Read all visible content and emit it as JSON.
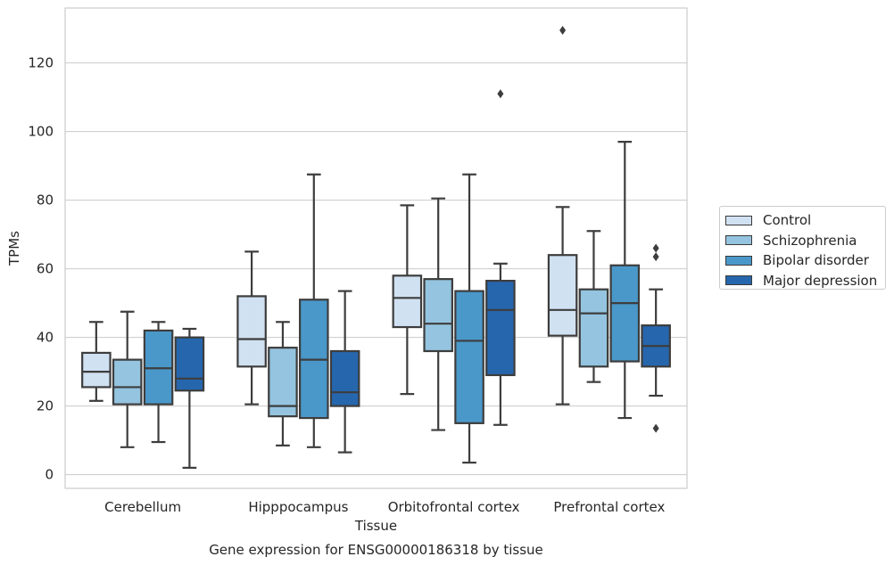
{
  "chart_data": {
    "type": "box",
    "title": "Gene expression for ENSG00000186318 by tissue",
    "xlabel": "Tissue",
    "ylabel": "TPMs",
    "ylim": [
      -4,
      136
    ],
    "yticks": [
      0,
      20,
      40,
      60,
      80,
      100,
      120
    ],
    "grid": "horizontal",
    "legend_position": "right",
    "categories": [
      "Cerebellum",
      "Hipppocampus",
      "Orbitofrontal cortex",
      "Prefrontal cortex"
    ],
    "series": [
      {
        "name": "Control",
        "color": "#d0e1f2",
        "boxes": [
          {
            "whisker_low": 21.5,
            "q1": 25.5,
            "median": 30,
            "q3": 35.5,
            "whisker_high": 44.5,
            "outliers": []
          },
          {
            "whisker_low": 20.5,
            "q1": 31.5,
            "median": 39.5,
            "q3": 52,
            "whisker_high": 65,
            "outliers": []
          },
          {
            "whisker_low": 23.5,
            "q1": 43,
            "median": 51.5,
            "q3": 58,
            "whisker_high": 78.5,
            "outliers": []
          },
          {
            "whisker_low": 20.5,
            "q1": 40.5,
            "median": 48,
            "q3": 64,
            "whisker_high": 78,
            "outliers": [
              129.5
            ]
          }
        ]
      },
      {
        "name": "Schizophrenia",
        "color": "#94c4df",
        "boxes": [
          {
            "whisker_low": 8,
            "q1": 20.5,
            "median": 25.5,
            "q3": 33.5,
            "whisker_high": 47.5,
            "outliers": []
          },
          {
            "whisker_low": 8.5,
            "q1": 17,
            "median": 20,
            "q3": 37,
            "whisker_high": 44.5,
            "outliers": []
          },
          {
            "whisker_low": 13,
            "q1": 36,
            "median": 44,
            "q3": 57,
            "whisker_high": 80.5,
            "outliers": []
          },
          {
            "whisker_low": 27,
            "q1": 31.5,
            "median": 47,
            "q3": 54,
            "whisker_high": 71,
            "outliers": []
          }
        ]
      },
      {
        "name": "Bipolar disorder",
        "color": "#4a98c9",
        "boxes": [
          {
            "whisker_low": 9.5,
            "q1": 20.5,
            "median": 31,
            "q3": 42,
            "whisker_high": 44.5,
            "outliers": []
          },
          {
            "whisker_low": 8,
            "q1": 16.5,
            "median": 33.5,
            "q3": 51,
            "whisker_high": 87.5,
            "outliers": []
          },
          {
            "whisker_low": 3.5,
            "q1": 15,
            "median": 39,
            "q3": 53.5,
            "whisker_high": 87.5,
            "outliers": []
          },
          {
            "whisker_low": 16.5,
            "q1": 33,
            "median": 50,
            "q3": 61,
            "whisker_high": 97,
            "outliers": []
          }
        ]
      },
      {
        "name": "Major depression",
        "color": "#2666ad",
        "boxes": [
          {
            "whisker_low": 2,
            "q1": 24.5,
            "median": 28,
            "q3": 40,
            "whisker_high": 42.5,
            "outliers": []
          },
          {
            "whisker_low": 6.5,
            "q1": 20,
            "median": 24,
            "q3": 36,
            "whisker_high": 53.5,
            "outliers": []
          },
          {
            "whisker_low": 14.5,
            "q1": 29,
            "median": 48,
            "q3": 56.5,
            "whisker_high": 61.5,
            "outliers": [
              111
            ]
          },
          {
            "whisker_low": 23,
            "q1": 31.5,
            "median": 37.5,
            "q3": 43.5,
            "whisker_high": 54,
            "outliers": [
              66,
              63.5,
              13.5
            ]
          }
        ]
      }
    ]
  }
}
